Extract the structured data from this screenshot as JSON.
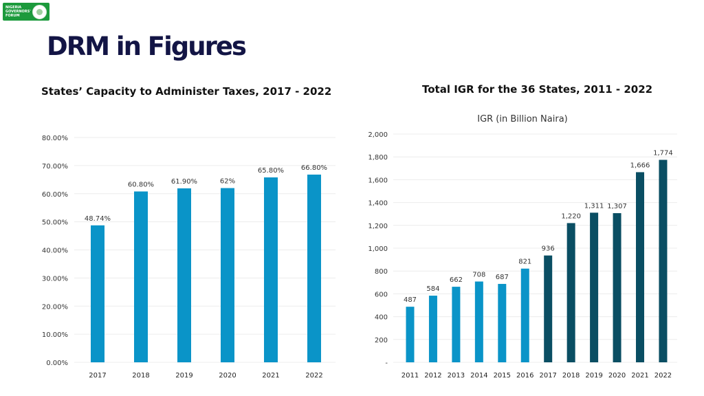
{
  "header": {
    "logo_text": "NIGERIA GOVERNORS' FORUM",
    "title": "DRM in Figures"
  },
  "chart_data": [
    {
      "type": "bar",
      "title": "States’ Capacity to Administer Taxes, 2017 - 2022",
      "categories": [
        "2017",
        "2018",
        "2019",
        "2020",
        "2021",
        "2022"
      ],
      "values": [
        48.74,
        60.8,
        61.9,
        62,
        65.8,
        66.8
      ],
      "value_labels": [
        "48.74%",
        "60.80%",
        "61.90%",
        "62%",
        "65.80%",
        "66.80%"
      ],
      "ylim": [
        0,
        80
      ],
      "yticks": [
        "0.00%",
        "10.00%",
        "20.00%",
        "30.00%",
        "40.00%",
        "50.00%",
        "60.00%",
        "70.00%",
        "80.00%"
      ],
      "grid": true,
      "colors": {
        "bar": "#0a94c8",
        "grid": "#ececec",
        "tick": "#333333"
      }
    },
    {
      "type": "bar",
      "title": "Total IGR for the 36 States, 2011 - 2022",
      "legend": "IGR (in Billion Naira)",
      "categories": [
        "2011",
        "2012",
        "2013",
        "2014",
        "2015",
        "2016",
        "2017",
        "2018",
        "2019",
        "2020",
        "2021",
        "2022"
      ],
      "values": [
        487,
        584,
        662,
        708,
        687,
        821,
        936,
        1220,
        1311,
        1307,
        1666,
        1774
      ],
      "value_labels": [
        "487",
        "584",
        "662",
        "708",
        "687",
        "821",
        "936",
        "1,220",
        "1,311",
        "1,307",
        "1,666",
        "1,774"
      ],
      "ylim": [
        0,
        2000
      ],
      "yticks": [
        "-",
        "200",
        "400",
        "600",
        "800",
        "1,000",
        "1,200",
        "1,400",
        "1,600",
        "1,800",
        "2,000"
      ],
      "grid": true,
      "colors": {
        "bar_light": "#0a94c8",
        "bar_dark": "#0a4e63",
        "grid": "#ececec",
        "tick": "#333333"
      },
      "dark_from_index": 6
    }
  ]
}
